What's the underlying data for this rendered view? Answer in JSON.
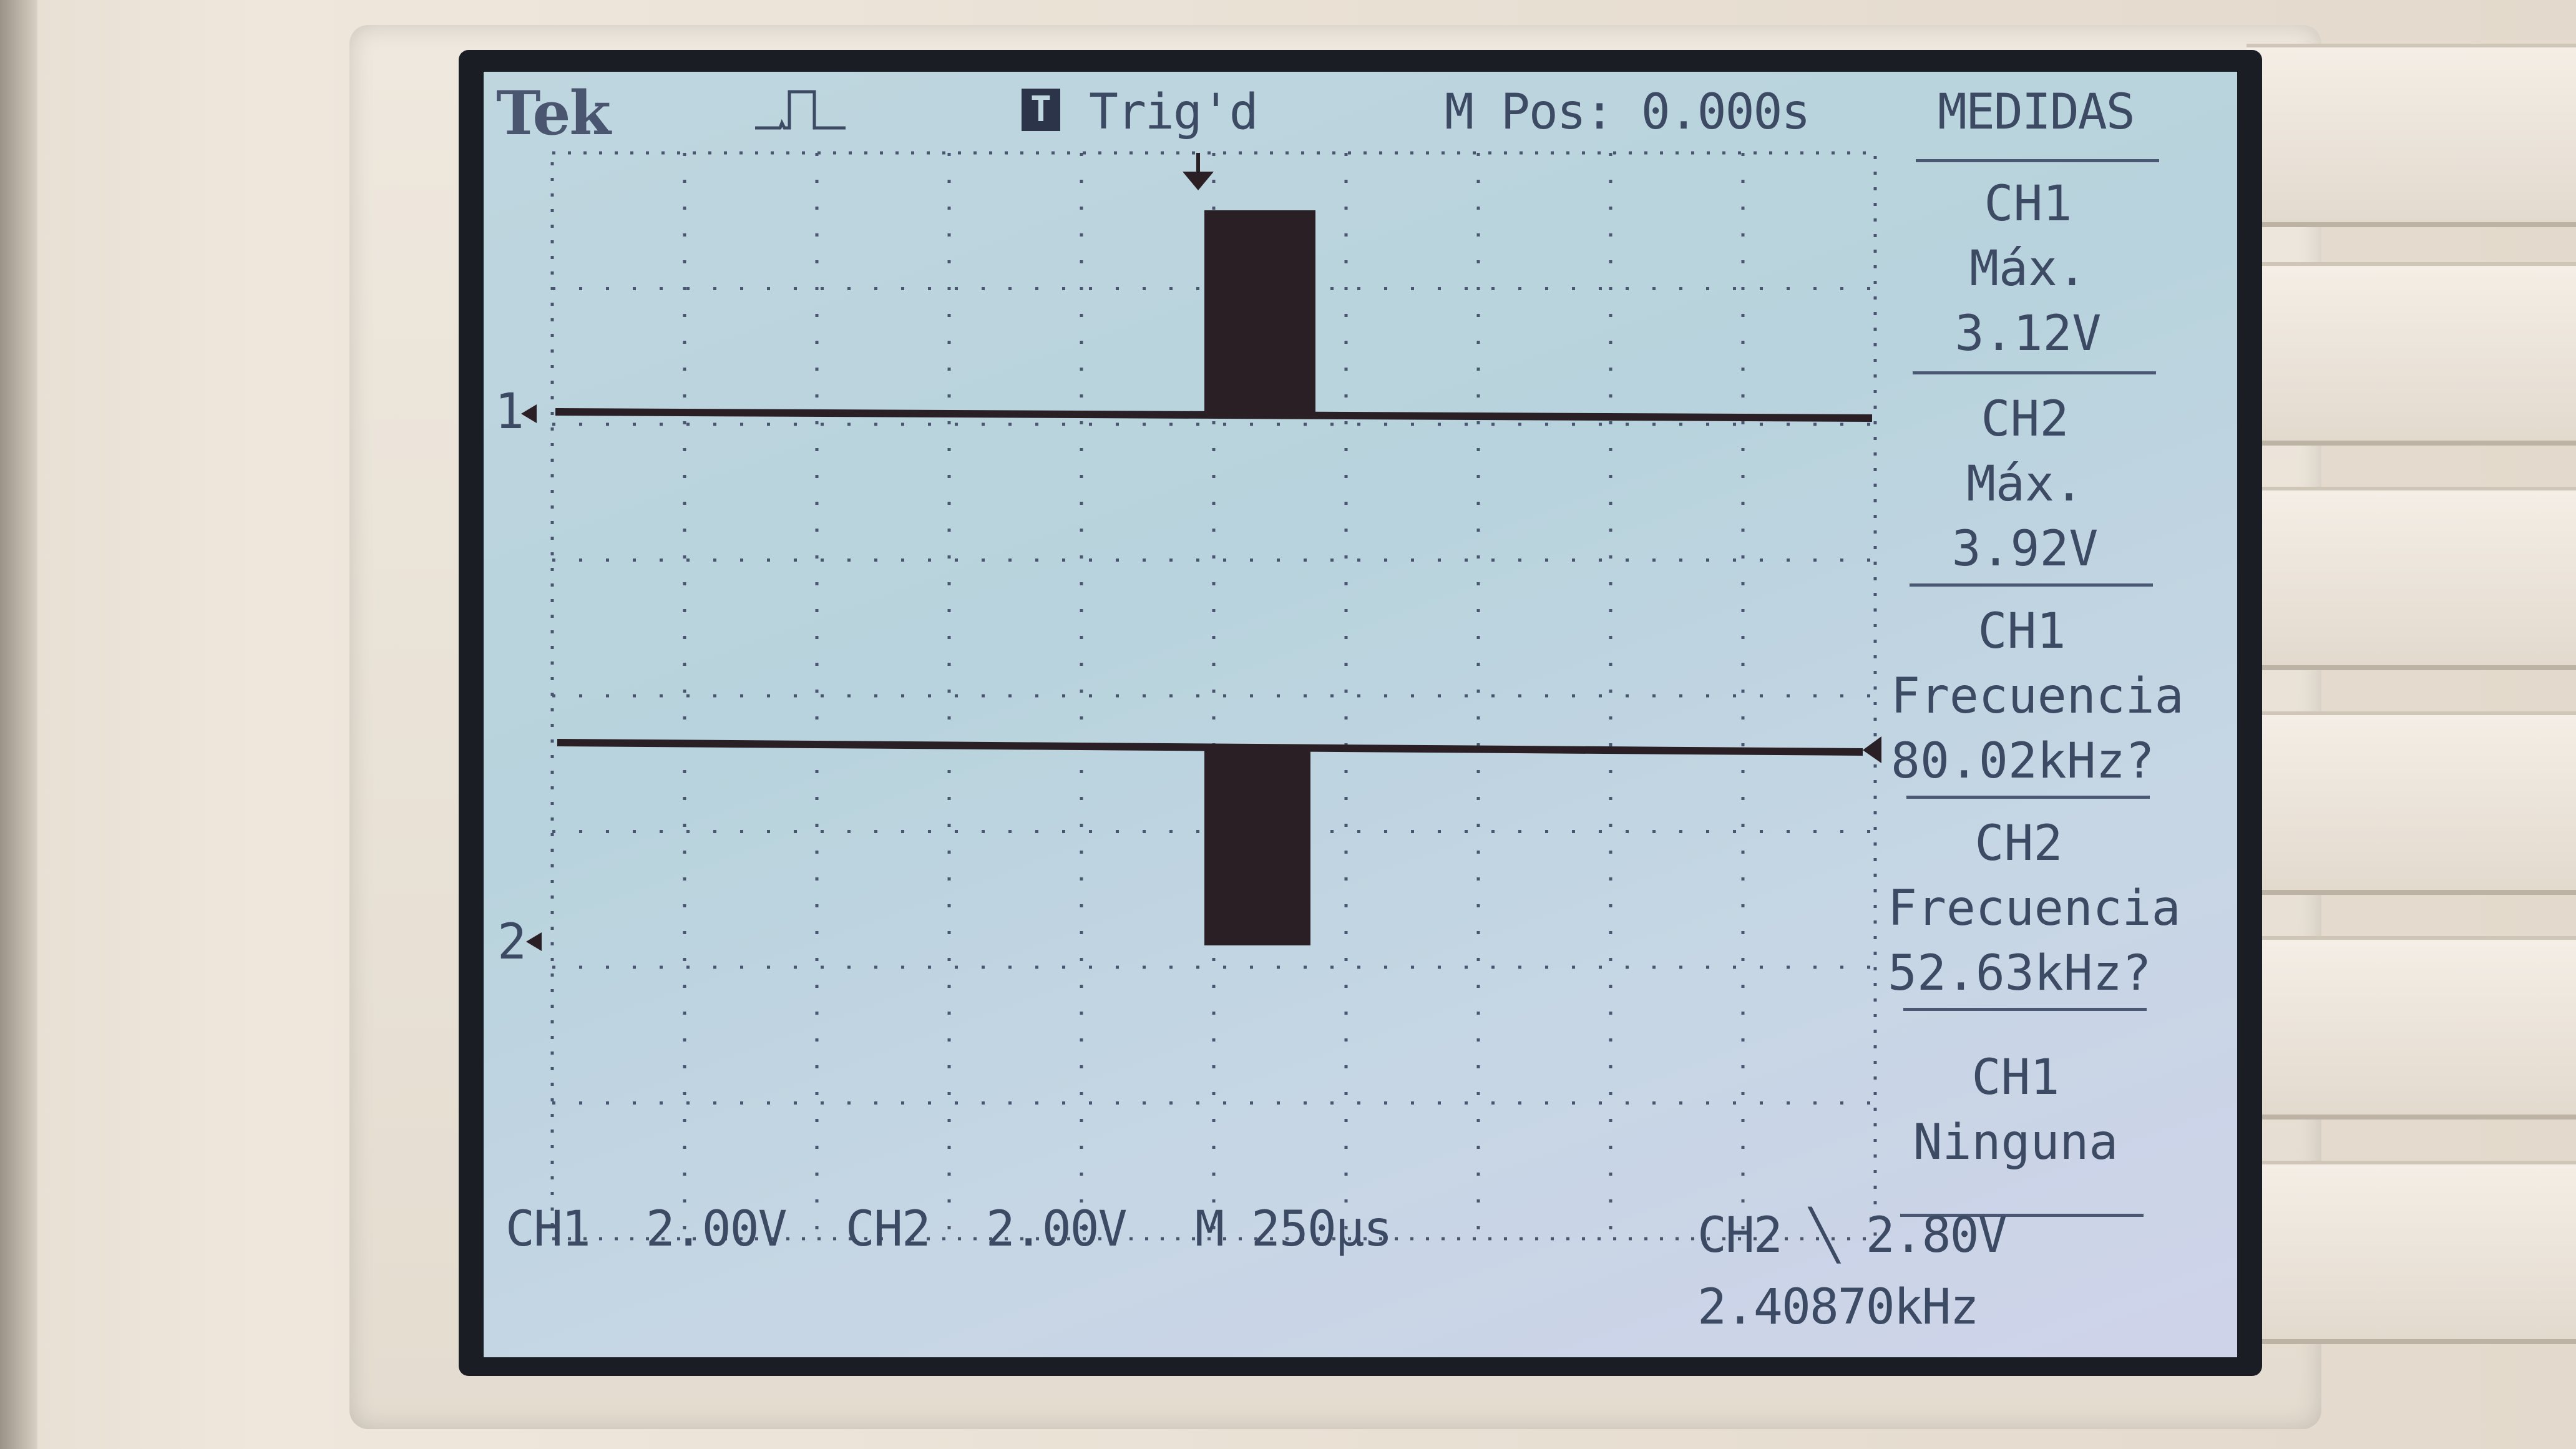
{
  "header": {
    "brand": "Tek",
    "trigger_badge": "T",
    "trigger_status": "Trig'd",
    "position": "M Pos: 0.000s",
    "menu_title": "MEDIDAS"
  },
  "channel_markers": {
    "ch1": "1",
    "ch2": "2"
  },
  "measurements": [
    {
      "channel": "CH1",
      "type": "Máx.",
      "value": "3.12V"
    },
    {
      "channel": "CH2",
      "type": "Máx.",
      "value": "3.92V"
    },
    {
      "channel": "CH1",
      "type": "Frecuencia",
      "value": "80.02kHz?"
    },
    {
      "channel": "CH2",
      "type": "Frecuencia",
      "value": "52.63kHz?"
    },
    {
      "channel": "CH1",
      "type": "Ninguna",
      "value": ""
    }
  ],
  "footer": {
    "ch1_scale": "CH1  2.00V",
    "ch2_scale": "CH2  2.00V",
    "timebase": "M 250µs",
    "trigger": "CH2 ╲ 2.80V",
    "trigger_frequency": "2.40870kHz"
  },
  "colors": {
    "lcd_bg": "#bfd6df",
    "trace": "#2a1f24",
    "text": "#3d4a63"
  }
}
